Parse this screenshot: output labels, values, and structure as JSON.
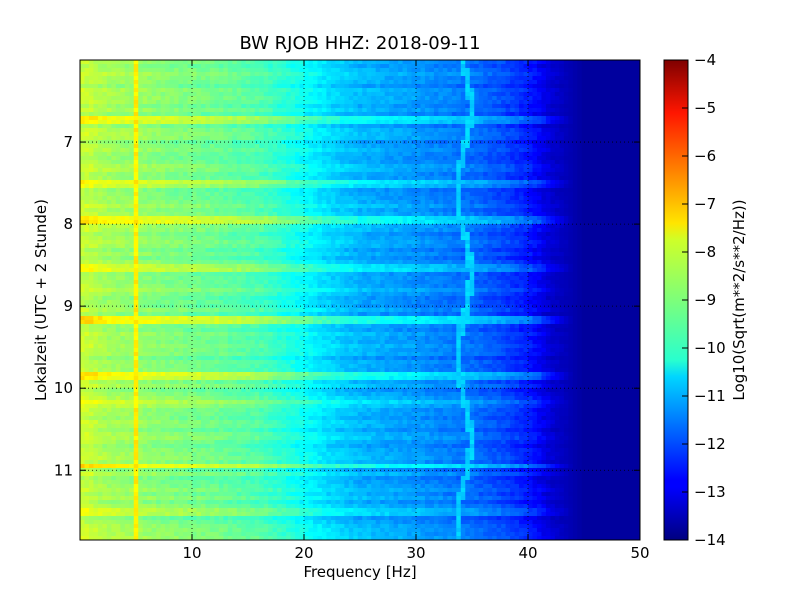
{
  "chart_data": {
    "type": "heatmap",
    "title": "BW RJOB HHZ: 2018-09-11",
    "xlabel": "Frequency [Hz]",
    "ylabel": "Lokalzeit (UTC + 2 Stunde)",
    "xlim": [
      0,
      50
    ],
    "ylim": [
      6.0,
      11.85
    ],
    "y_inverted": true,
    "x_ticks": [
      10,
      20,
      30,
      40,
      50
    ],
    "x_tick_labels": [
      "10",
      "20",
      "30",
      "40",
      "50"
    ],
    "y_ticks": [
      7,
      8,
      9,
      10,
      11
    ],
    "y_tick_labels": [
      "7",
      "8",
      "9",
      "10",
      "11"
    ],
    "grid": true,
    "colormap": "jet",
    "colorbar": {
      "label": "Log10(Sqrt(m**2/s**2/Hz))",
      "range": [
        -14,
        -4
      ],
      "ticks": [
        -4,
        -5,
        -6,
        -7,
        -8,
        -9,
        -10,
        -11,
        -12,
        -13,
        -14
      ],
      "tick_labels": [
        "−4",
        "−5",
        "−6",
        "−7",
        "−8",
        "−9",
        "−10",
        "−11",
        "−12",
        "−13",
        "−14"
      ]
    },
    "spectrum_profile": {
      "frequency_hz": [
        0,
        1,
        2,
        3,
        5,
        8,
        12,
        16,
        20,
        22,
        25,
        30,
        35,
        38,
        40,
        42,
        45,
        50
      ],
      "log_psd": [
        -8.3,
        -8.4,
        -8.6,
        -8.7,
        -8.8,
        -9.0,
        -9.2,
        -9.5,
        -10.2,
        -10.6,
        -11.0,
        -11.3,
        -11.7,
        -12.1,
        -12.5,
        -13.2,
        -13.7,
        -13.7
      ]
    },
    "spectral_lines": [
      {
        "frequency_hz": 5.0,
        "log_psd": -7.6
      },
      {
        "frequency_hz": 34.3,
        "log_psd": -10.7
      }
    ],
    "horizontal_events": [
      {
        "time": 6.75,
        "log_psd_boost": 0.8
      },
      {
        "time": 7.5,
        "log_psd_boost": 0.6
      },
      {
        "time": 7.95,
        "log_psd_boost": 1.0
      },
      {
        "time": 8.55,
        "log_psd_boost": 0.6
      },
      {
        "time": 9.15,
        "log_psd_boost": 1.1
      },
      {
        "time": 9.85,
        "log_psd_boost": 0.9
      },
      {
        "time": 10.2,
        "log_psd_boost": 0.5
      },
      {
        "time": 10.95,
        "log_psd_boost": 0.9
      },
      {
        "time": 11.5,
        "log_psd_boost": 0.5
      }
    ]
  }
}
